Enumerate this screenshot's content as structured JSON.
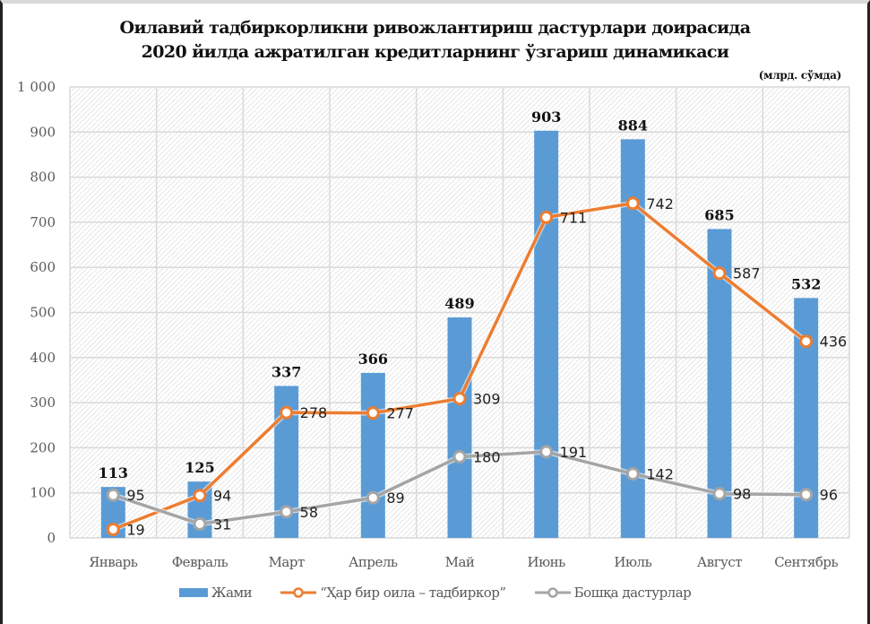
{
  "chart_data": {
    "type": "bar",
    "title_lines": [
      "Оилавий тадбиркорликни ривожлантириш дастурлари доирасида",
      "2020 йилда ажратилган кредитларнинг ўзгариш динамикаси"
    ],
    "unit_label": "(млрд. сўмда)",
    "xlabel": "",
    "ylabel": "",
    "ylim": [
      0,
      1000
    ],
    "yticks": [
      0,
      100,
      200,
      300,
      400,
      500,
      600,
      700,
      800,
      900,
      1000
    ],
    "ytick_labels": [
      "0",
      "100",
      "200",
      "300",
      "400",
      "500",
      "600",
      "700",
      "800",
      "900",
      "1 000"
    ],
    "grid": true,
    "legend_position": "bottom",
    "categories": [
      "Январь",
      "Февраль",
      "Март",
      "Апрель",
      "Май",
      "Июнь",
      "Июль",
      "Август",
      "Сентябрь"
    ],
    "series": [
      {
        "name": "Жами",
        "type": "bar",
        "color": "#5b9bd5",
        "values": [
          113,
          125,
          337,
          366,
          489,
          903,
          884,
          685,
          532
        ]
      },
      {
        "name": "“Ҳар бир оила – тадбиркор”",
        "type": "line",
        "color": "#ed7d31",
        "values": [
          19,
          94,
          278,
          277,
          309,
          711,
          742,
          587,
          436
        ]
      },
      {
        "name": "Бошқа дастурлар",
        "type": "line",
        "color": "#a5a5a5",
        "values": [
          95,
          31,
          58,
          89,
          180,
          191,
          142,
          98,
          96
        ]
      }
    ]
  }
}
